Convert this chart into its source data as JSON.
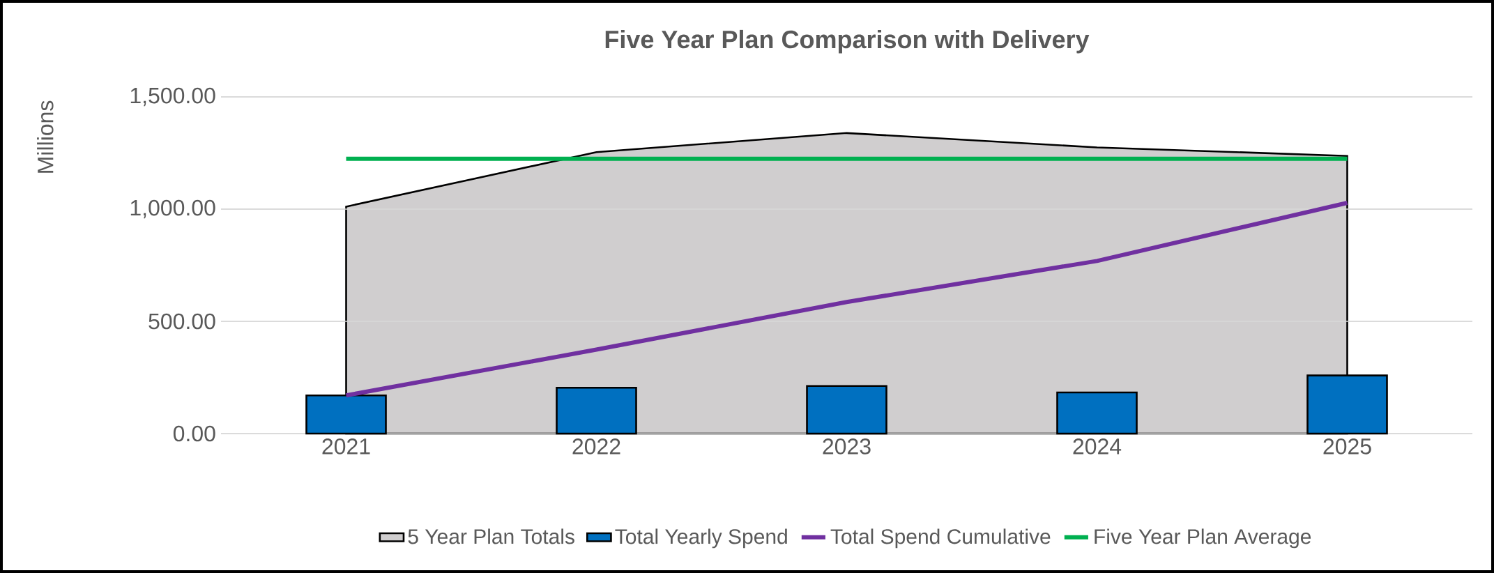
{
  "chart_data": {
    "type": "bar",
    "title": "Five Year Plan Comparison with Delivery",
    "ylabel": "Millions",
    "categories": [
      "2021",
      "2022",
      "2023",
      "2024",
      "2025"
    ],
    "series": [
      {
        "name": "5 Year Plan Totals",
        "type": "area",
        "color": "#d0cecf",
        "values": [
          1011,
          1254,
          1339,
          1275,
          1237
        ]
      },
      {
        "name": "Total Yearly Spend",
        "color": "#0070c0",
        "values": [
          170,
          204,
          212,
          183,
          259
        ]
      },
      {
        "name": "Total Spend Cumulative",
        "type": "line",
        "color": "#7030a0",
        "values": [
          170,
          374,
          586,
          769,
          1028
        ]
      },
      {
        "name": "Five Year Plan Average",
        "type": "line",
        "color": "#00b050",
        "values": [
          1224,
          1224,
          1224,
          1224,
          1224
        ]
      }
    ],
    "ylim": [
      0,
      1500
    ],
    "yticks": [
      {
        "value": 0,
        "label": "0.00"
      },
      {
        "value": 500,
        "label": "500.00"
      },
      {
        "value": 1000,
        "label": "1,000.00"
      },
      {
        "value": 1500,
        "label": "1,500.00"
      }
    ],
    "grid": "y",
    "legend": "bottom"
  }
}
